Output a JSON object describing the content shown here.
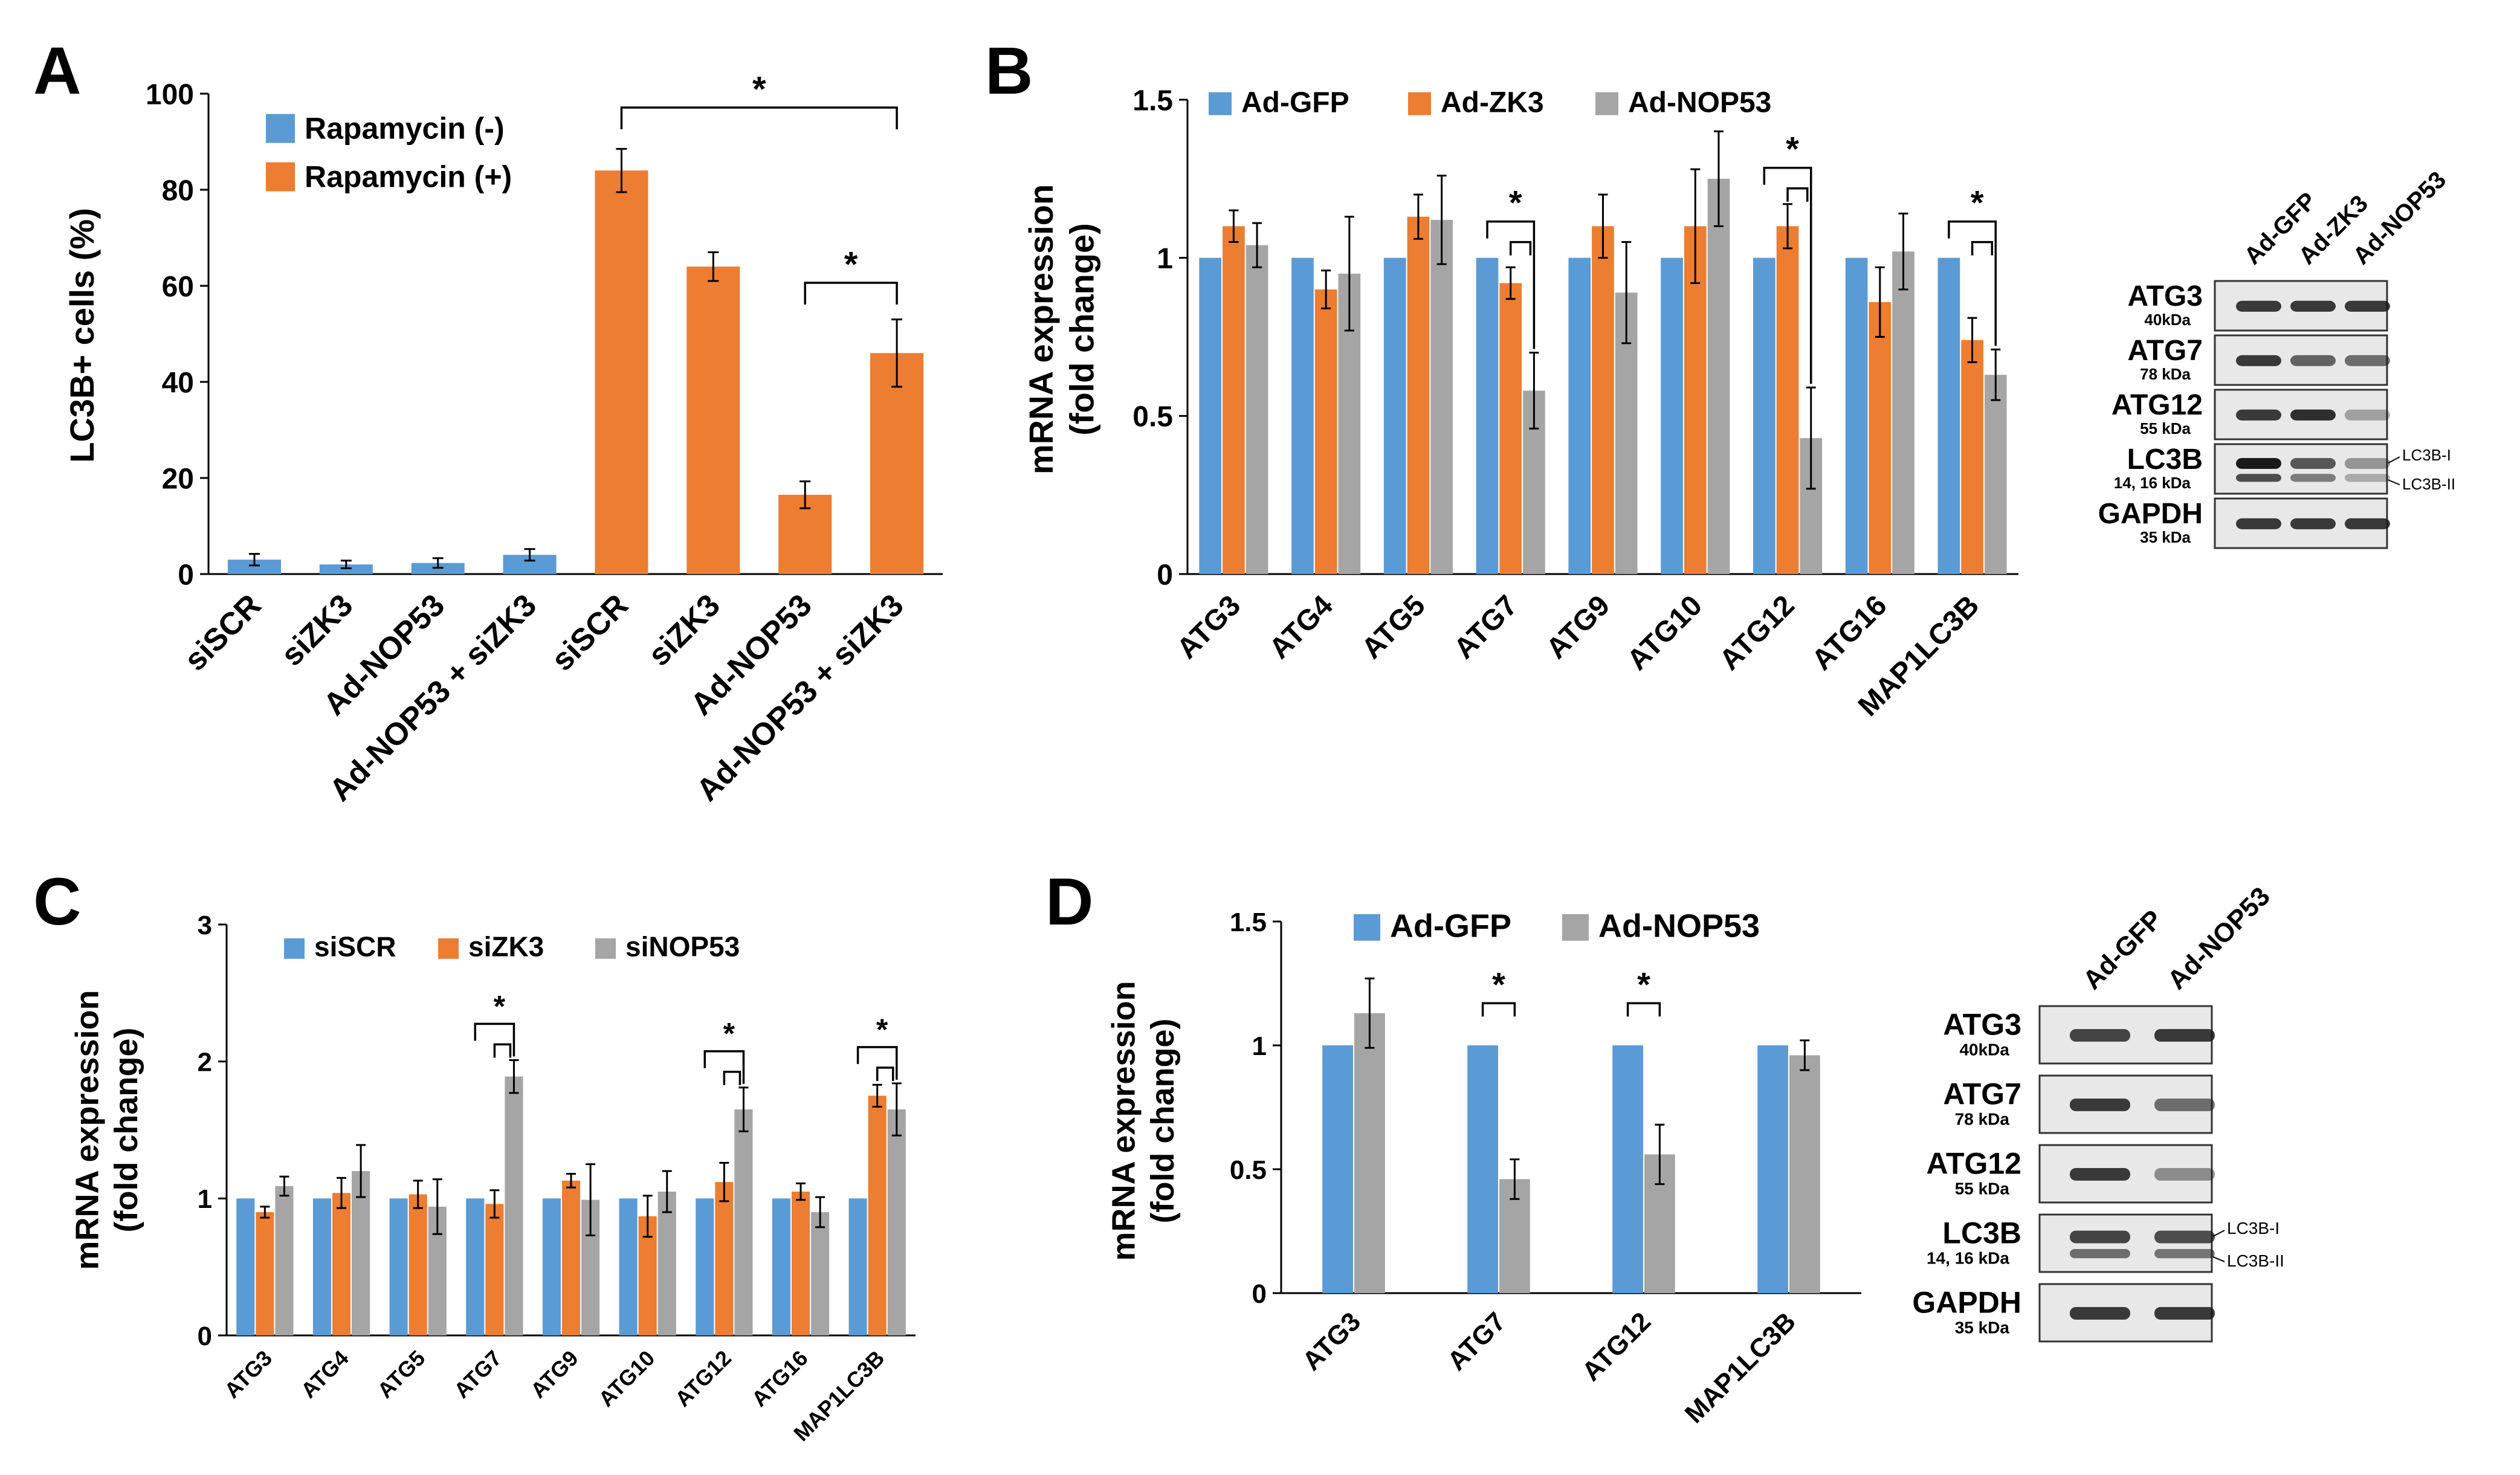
{
  "colors": {
    "blue": "#5b9bd5",
    "orange": "#ed7d31",
    "gray": "#a5a5a5",
    "band": "#1a1a1a"
  },
  "chart_data": [
    {
      "panel": "A",
      "type": "bar",
      "ylabel": "LC3B+ cells (%)",
      "ylim": [
        0,
        100
      ],
      "yticks": [
        "0",
        "20",
        "40",
        "60",
        "80",
        "100"
      ],
      "categories": [
        "siSCR",
        "siZK3",
        "Ad-NOP53",
        "Ad-NOP53 + siZK3",
        "siSCR",
        "siZK3",
        "Ad-NOP53",
        "Ad-NOP53 + siZK3"
      ],
      "series": [
        {
          "name": "Rapamycin (-)",
          "color": "#5b9bd5",
          "values": [
            3,
            2,
            2.3,
            4,
            null,
            null,
            null,
            null
          ],
          "errors": [
            1.2,
            0.8,
            1.0,
            1.2,
            null,
            null,
            null,
            null
          ]
        },
        {
          "name": "Rapamycin (+)",
          "color": "#ed7d31",
          "values": [
            null,
            null,
            null,
            null,
            84,
            64,
            16.5,
            46
          ],
          "errors": [
            null,
            null,
            null,
            null,
            4.5,
            3,
            2.8,
            7
          ]
        }
      ],
      "significance": [
        {
          "from": 4,
          "to": 7,
          "label": "*"
        },
        {
          "from": 6,
          "to": 7,
          "label": "*"
        }
      ]
    },
    {
      "panel": "B",
      "type": "bar",
      "ylabel": "mRNA expression (fold change)",
      "ylabel_lines": [
        "mRNA expression",
        "(fold change)"
      ],
      "ylim": [
        0,
        1.5
      ],
      "yticks": [
        "0",
        "0.5",
        "1",
        "1.5"
      ],
      "categories": [
        "ATG3",
        "ATG4",
        "ATG5",
        "ATG7",
        "ATG9",
        "ATG10",
        "ATG12",
        "ATG16",
        "MAP1LC3B"
      ],
      "series": [
        {
          "name": "Ad-GFP",
          "color": "#5b9bd5",
          "values": [
            1,
            1,
            1,
            1,
            1,
            1,
            1,
            1,
            1
          ],
          "errors": [
            0,
            0,
            0,
            0,
            0,
            0,
            0,
            0,
            0
          ]
        },
        {
          "name": "Ad-ZK3",
          "color": "#ed7d31",
          "values": [
            1.1,
            0.9,
            1.13,
            0.92,
            1.1,
            1.1,
            1.1,
            0.86,
            0.74
          ],
          "errors": [
            0.05,
            0.06,
            0.07,
            0.05,
            0.1,
            0.18,
            0.07,
            0.11,
            0.07
          ]
        },
        {
          "name": "Ad-NOP53",
          "color": "#a5a5a5",
          "values": [
            1.04,
            0.95,
            1.12,
            0.58,
            0.89,
            1.25,
            0.43,
            1.02,
            0.63
          ],
          "errors": [
            0.07,
            0.18,
            0.14,
            0.12,
            0.16,
            0.15,
            0.16,
            0.12,
            0.08
          ]
        }
      ],
      "significance": [
        {
          "category": "ATG7",
          "label": "*"
        },
        {
          "category": "ATG12",
          "label": "*"
        },
        {
          "category": "MAP1LC3B",
          "label": "*"
        }
      ]
    },
    {
      "panel": "C",
      "type": "bar",
      "ylabel": "mRNA expression (fold change)",
      "ylabel_lines": [
        "mRNA expression",
        "(fold change)"
      ],
      "ylim": [
        0,
        3
      ],
      "yticks": [
        "0",
        "1",
        "2",
        "3"
      ],
      "categories": [
        "ATG3",
        "ATG4",
        "ATG5",
        "ATG7",
        "ATG9",
        "ATG10",
        "ATG12",
        "ATG16",
        "MAP1LC3B"
      ],
      "series": [
        {
          "name": "siSCR",
          "color": "#5b9bd5",
          "values": [
            1,
            1,
            1,
            1,
            1,
            1,
            1,
            1,
            1
          ],
          "errors": [
            0,
            0,
            0,
            0,
            0,
            0,
            0,
            0,
            0
          ]
        },
        {
          "name": "siZK3",
          "color": "#ed7d31",
          "values": [
            0.9,
            1.04,
            1.03,
            0.96,
            1.13,
            0.87,
            1.12,
            1.05,
            1.75
          ],
          "errors": [
            0.04,
            0.11,
            0.1,
            0.1,
            0.05,
            0.15,
            0.14,
            0.06,
            0.08
          ]
        },
        {
          "name": "siNOP53",
          "color": "#a5a5a5",
          "values": [
            1.09,
            1.2,
            0.94,
            1.89,
            0.99,
            1.05,
            1.65,
            0.9,
            1.65
          ],
          "errors": [
            0.07,
            0.19,
            0.2,
            0.12,
            0.26,
            0.15,
            0.16,
            0.11,
            0.19
          ]
        }
      ],
      "significance": [
        {
          "category": "ATG7",
          "label": "*"
        },
        {
          "category": "ATG12",
          "label": "*"
        },
        {
          "category": "MAP1LC3B",
          "label": "*"
        }
      ]
    },
    {
      "panel": "D",
      "type": "bar",
      "ylabel": "mRNA expression (fold change)",
      "ylabel_lines": [
        "mRNA expression",
        "(fold change)"
      ],
      "ylim": [
        0,
        1.5
      ],
      "yticks": [
        "0",
        "0.5",
        "1",
        "1.5"
      ],
      "categories": [
        "ATG3",
        "ATG7",
        "ATG12",
        "MAP1LC3B"
      ],
      "series": [
        {
          "name": "Ad-GFP",
          "color": "#5b9bd5",
          "values": [
            1,
            1,
            1,
            1
          ],
          "errors": [
            0,
            0,
            0,
            0
          ]
        },
        {
          "name": "Ad-NOP53",
          "color": "#a5a5a5",
          "values": [
            1.13,
            0.46,
            0.56,
            0.96
          ],
          "errors": [
            0.14,
            0.08,
            0.12,
            0.06
          ]
        }
      ],
      "significance": [
        {
          "category": "ATG7",
          "label": "*"
        },
        {
          "category": "ATG12",
          "label": "*"
        }
      ]
    }
  ],
  "blots": {
    "B": {
      "lanes": [
        "Ad-GFP",
        "Ad-ZK3",
        "Ad-NOP53"
      ],
      "rows": [
        {
          "name": "ATG3",
          "size": "40kDa",
          "band_intensity": [
            0.85,
            0.85,
            0.85
          ]
        },
        {
          "name": "ATG7",
          "size": "78 kDa",
          "band_intensity": [
            0.85,
            0.65,
            0.6
          ]
        },
        {
          "name": "ATG12",
          "size": "55 kDa",
          "band_intensity": [
            0.85,
            0.9,
            0.35
          ]
        },
        {
          "name": "LC3B",
          "size": "14, 16 kDa",
          "band_intensity": [
            1.0,
            0.7,
            0.4
          ],
          "side_labels": [
            "LC3B-I",
            "LC3B-II"
          ]
        },
        {
          "name": "GAPDH",
          "size": "35 kDa",
          "band_intensity": [
            0.85,
            0.85,
            0.85
          ]
        }
      ]
    },
    "D": {
      "lanes": [
        "Ad-GFP",
        "Ad-NOP53"
      ],
      "rows": [
        {
          "name": "ATG3",
          "size": "40kDa",
          "band_intensity": [
            0.8,
            0.85
          ]
        },
        {
          "name": "ATG7",
          "size": "78 kDa",
          "band_intensity": [
            0.85,
            0.6
          ]
        },
        {
          "name": "ATG12",
          "size": "55 kDa",
          "band_intensity": [
            0.85,
            0.45
          ]
        },
        {
          "name": "LC3B",
          "size": "14, 16 kDa",
          "band_intensity": [
            0.8,
            0.75
          ],
          "side_labels": [
            "LC3B-I",
            "LC3B-II"
          ]
        },
        {
          "name": "GAPDH",
          "size": "35 kDa",
          "band_intensity": [
            0.85,
            0.85
          ]
        }
      ]
    }
  }
}
